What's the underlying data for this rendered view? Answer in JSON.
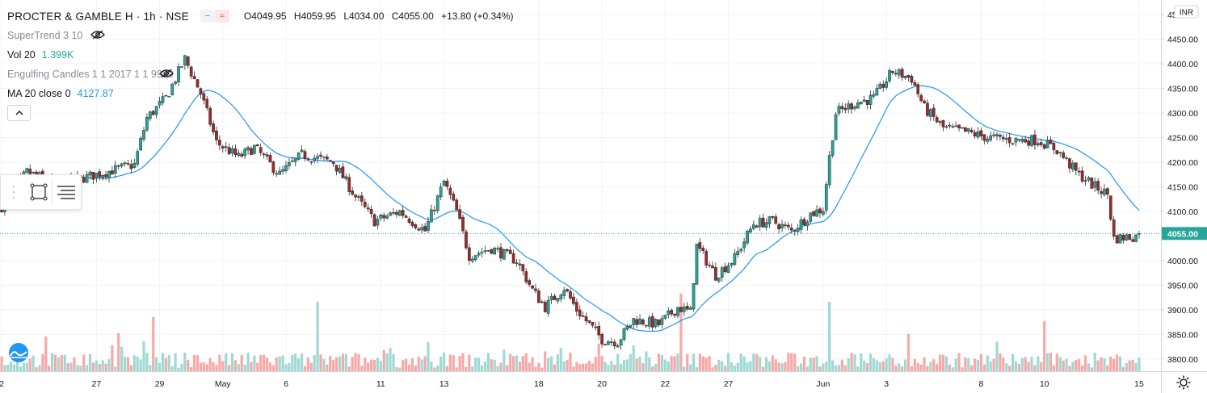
{
  "header": {
    "title": "PROCTER & GAMBLE H · 1h · NSE",
    "open": "O4049.95",
    "high": "H4059.95",
    "low": "L4034.00",
    "close": "C4055.00",
    "change": "+13.80 (+0.34%)",
    "pill_minus": "−",
    "pill_wave": "≈"
  },
  "indicators": {
    "supertrend": "SuperTrend 3 10",
    "vol_label": "Vol 20",
    "vol_value": "1.399K",
    "engulfing": "Engulfing Candles 1 1 2017 1 1 9999",
    "ma_label": "MA 20 close 0",
    "ma_value": "4127.87",
    "collapse": "^"
  },
  "price_axis": {
    "currency": "INR",
    "current_price": "4055.00",
    "ticks": [
      "4500.00",
      "4450.00",
      "4400.00",
      "4350.00",
      "4300.00",
      "4250.00",
      "4200.00",
      "4150.00",
      "4100.00",
      "4050.00",
      "4000.00",
      "3950.00",
      "3900.00",
      "3850.00",
      "3800.00"
    ]
  },
  "time_axis": {
    "labels": [
      {
        "text": "2",
        "bar": 0
      },
      {
        "text": "27",
        "bar": 30
      },
      {
        "text": "29",
        "bar": 50
      },
      {
        "text": "May",
        "bar": 70
      },
      {
        "text": "6",
        "bar": 90
      },
      {
        "text": "11",
        "bar": 120
      },
      {
        "text": "13",
        "bar": 140
      },
      {
        "text": "18",
        "bar": 170
      },
      {
        "text": "20",
        "bar": 190
      },
      {
        "text": "22",
        "bar": 210
      },
      {
        "text": "27",
        "bar": 230
      },
      {
        "text": "Jun",
        "bar": 260
      },
      {
        "text": "3",
        "bar": 280
      },
      {
        "text": "8",
        "bar": 310
      },
      {
        "text": "10",
        "bar": 330
      },
      {
        "text": "15",
        "bar": 360
      }
    ]
  },
  "colors": {
    "up": "#26a69a",
    "down": "#ef5350",
    "up_body": "#26a69a",
    "down_body": "#9c2b2b",
    "ma": "#2196f3",
    "grid": "#f0f3fa",
    "price_tag": "#26a69a"
  },
  "chart_data": {
    "type": "candlestick",
    "ylim": [
      3775,
      4510
    ],
    "last_price": 4055.0,
    "ma_period": 20,
    "waypoints": [
      {
        "bar": 0,
        "price": 4110
      },
      {
        "bar": 8,
        "price": 4180
      },
      {
        "bar": 18,
        "price": 4155
      },
      {
        "bar": 30,
        "price": 4175
      },
      {
        "bar": 42,
        "price": 4195
      },
      {
        "bar": 46,
        "price": 4290
      },
      {
        "bar": 52,
        "price": 4330
      },
      {
        "bar": 58,
        "price": 4410
      },
      {
        "bar": 63,
        "price": 4340
      },
      {
        "bar": 68,
        "price": 4240
      },
      {
        "bar": 75,
        "price": 4210
      },
      {
        "bar": 80,
        "price": 4230
      },
      {
        "bar": 88,
        "price": 4175
      },
      {
        "bar": 95,
        "price": 4215
      },
      {
        "bar": 105,
        "price": 4200
      },
      {
        "bar": 112,
        "price": 4130
      },
      {
        "bar": 118,
        "price": 4080
      },
      {
        "bar": 126,
        "price": 4100
      },
      {
        "bar": 134,
        "price": 4060
      },
      {
        "bar": 140,
        "price": 4160
      },
      {
        "bar": 144,
        "price": 4100
      },
      {
        "bar": 148,
        "price": 4010
      },
      {
        "bar": 155,
        "price": 4025
      },
      {
        "bar": 163,
        "price": 4000
      },
      {
        "bar": 168,
        "price": 3940
      },
      {
        "bar": 172,
        "price": 3905
      },
      {
        "bar": 178,
        "price": 3945
      },
      {
        "bar": 182,
        "price": 3900
      },
      {
        "bar": 190,
        "price": 3840
      },
      {
        "bar": 195,
        "price": 3835
      },
      {
        "bar": 200,
        "price": 3880
      },
      {
        "bar": 208,
        "price": 3870
      },
      {
        "bar": 214,
        "price": 3905
      },
      {
        "bar": 218,
        "price": 3895
      },
      {
        "bar": 220,
        "price": 4030
      },
      {
        "bar": 226,
        "price": 3970
      },
      {
        "bar": 232,
        "price": 4005
      },
      {
        "bar": 238,
        "price": 4075
      },
      {
        "bar": 244,
        "price": 4080
      },
      {
        "bar": 250,
        "price": 4060
      },
      {
        "bar": 256,
        "price": 4095
      },
      {
        "bar": 260,
        "price": 4105
      },
      {
        "bar": 262,
        "price": 4210
      },
      {
        "bar": 264,
        "price": 4300
      },
      {
        "bar": 270,
        "price": 4320
      },
      {
        "bar": 276,
        "price": 4330
      },
      {
        "bar": 282,
        "price": 4385
      },
      {
        "bar": 288,
        "price": 4370
      },
      {
        "bar": 292,
        "price": 4310
      },
      {
        "bar": 298,
        "price": 4270
      },
      {
        "bar": 306,
        "price": 4260
      },
      {
        "bar": 312,
        "price": 4250
      },
      {
        "bar": 320,
        "price": 4245
      },
      {
        "bar": 328,
        "price": 4245
      },
      {
        "bar": 334,
        "price": 4225
      },
      {
        "bar": 340,
        "price": 4180
      },
      {
        "bar": 346,
        "price": 4150
      },
      {
        "bar": 350,
        "price": 4135
      },
      {
        "bar": 352,
        "price": 4045
      },
      {
        "bar": 360,
        "price": 4050
      }
    ],
    "bar_count": 361,
    "volume_spikes": [
      {
        "bar": 100,
        "value": 1.0
      },
      {
        "bar": 215,
        "value": 1.12
      },
      {
        "bar": 262,
        "value": 1.0
      },
      {
        "bar": 330,
        "value": 0.72
      },
      {
        "bar": 48,
        "value": 0.78
      },
      {
        "bar": 37,
        "value": 0.55
      },
      {
        "bar": 14,
        "value": 0.5
      }
    ]
  }
}
